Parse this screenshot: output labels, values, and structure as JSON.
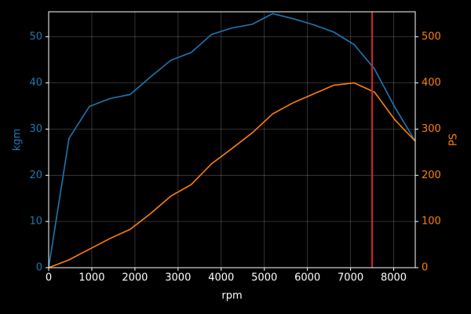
{
  "chart_data": {
    "type": "line",
    "xlabel": "rpm",
    "ylabel": "kgm",
    "y2label": "PS",
    "x": [
      0,
      472,
      944,
      1417,
      1889,
      2361,
      2833,
      3306,
      3778,
      4250,
      4722,
      5194,
      5667,
      6139,
      6611,
      7083,
      7556,
      8028,
      8500
    ],
    "series": [
      {
        "name": "kgm",
        "color": "#1f77b4",
        "values": [
          0,
          28,
          34.9,
          36.6,
          37.5,
          41.3,
          44.9,
          46.6,
          50.5,
          51.9,
          52.7,
          55.0,
          53.9,
          52.6,
          51.0,
          48.3,
          43.0,
          34.7,
          27.4
        ]
      },
      {
        "name": "PS",
        "color": "#ff7f0e",
        "axis": "y2",
        "values": [
          0,
          17,
          40,
          63,
          83,
          117,
          155,
          180,
          225,
          258,
          292,
          333,
          357,
          376,
          395,
          400,
          380,
          320,
          274
        ]
      }
    ],
    "redline": 7500,
    "redline_color": "#d62728",
    "xlim": [
      0,
      8500
    ],
    "xticks": [
      0,
      1000,
      2000,
      3000,
      4000,
      5000,
      6000,
      7000,
      8000
    ],
    "ylim": [
      0,
      55.4
    ],
    "yticks": [
      0,
      10,
      20,
      30,
      40,
      50
    ],
    "y2lim": [
      0,
      554
    ],
    "y2ticks": [
      0,
      100,
      200,
      300,
      400,
      500
    ],
    "grid": true
  }
}
